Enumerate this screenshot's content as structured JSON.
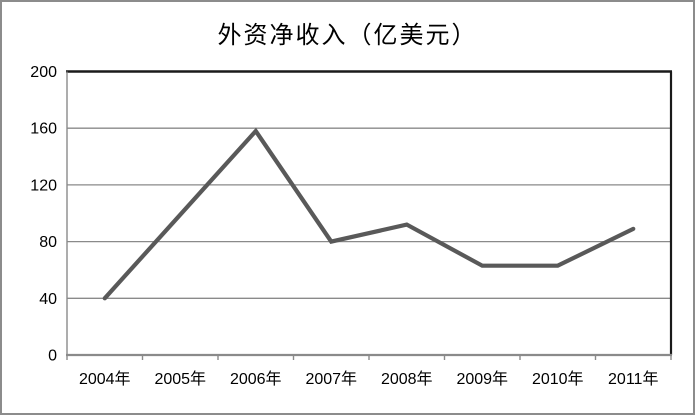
{
  "chart_data": {
    "type": "line",
    "title": "外资净收入（亿美元）",
    "categories": [
      "2004年",
      "2005年",
      "2006年",
      "2007年",
      "2008年",
      "2009年",
      "2010年",
      "2011年"
    ],
    "values": [
      40,
      99,
      158,
      80,
      92,
      63,
      63,
      89
    ],
    "xlabel": "",
    "ylabel": "",
    "ylim": [
      0,
      200
    ],
    "yticks": [
      0,
      40,
      80,
      120,
      160,
      200
    ],
    "grid": "horizontal",
    "legend": "none",
    "colors": {
      "series_line": "#595959",
      "gridline": "#8a8a8a",
      "plot_border": "#1a1a1a",
      "axis_line": "#8a8a8a",
      "frame_border": "#8c8c8c",
      "label_text": "#000000",
      "background": "#ffffff"
    }
  }
}
